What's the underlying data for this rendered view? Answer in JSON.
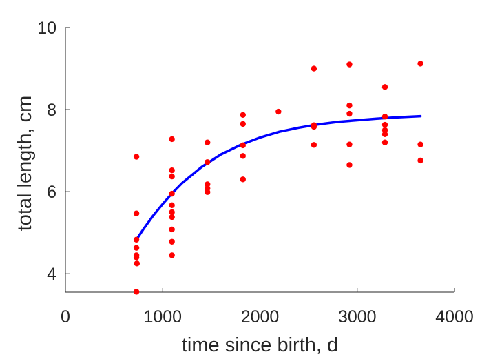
{
  "chart_data": {
    "type": "scatter",
    "xlabel": "time since birth, d",
    "ylabel": "total length, cm",
    "xlim": [
      0,
      4000
    ],
    "ylim": [
      3.55,
      10
    ],
    "x_ticks": [
      0,
      1000,
      2000,
      3000,
      4000
    ],
    "x_tick_labels": [
      "0",
      "1000",
      "2000",
      "3000",
      "4000"
    ],
    "y_ticks": [
      4,
      6,
      8,
      10
    ],
    "y_tick_labels": [
      "4",
      "6",
      "8",
      "10"
    ],
    "grid": false,
    "series": [
      {
        "kind": "points",
        "color": "#ff0000",
        "points": [
          [
            730,
            6.85
          ],
          [
            730,
            5.47
          ],
          [
            730,
            4.83
          ],
          [
            730,
            4.63
          ],
          [
            730,
            4.45
          ],
          [
            730,
            4.4
          ],
          [
            735,
            4.25
          ],
          [
            730,
            3.56
          ],
          [
            1095,
            7.28
          ],
          [
            1095,
            6.52
          ],
          [
            1095,
            6.37
          ],
          [
            1095,
            5.95
          ],
          [
            1095,
            5.67
          ],
          [
            1095,
            5.5
          ],
          [
            1095,
            5.38
          ],
          [
            1095,
            5.08
          ],
          [
            1095,
            4.78
          ],
          [
            1095,
            4.45
          ],
          [
            1460,
            7.2
          ],
          [
            1460,
            6.72
          ],
          [
            1460,
            6.18
          ],
          [
            1460,
            6.08
          ],
          [
            1460,
            5.99
          ],
          [
            1825,
            7.87
          ],
          [
            1825,
            7.65
          ],
          [
            1825,
            7.13
          ],
          [
            1825,
            6.87
          ],
          [
            1825,
            6.3
          ],
          [
            2190,
            7.95
          ],
          [
            2555,
            9.0
          ],
          [
            2555,
            7.62
          ],
          [
            2555,
            7.58
          ],
          [
            2555,
            7.14
          ],
          [
            2920,
            9.1
          ],
          [
            2920,
            8.1
          ],
          [
            2920,
            7.9
          ],
          [
            2920,
            7.15
          ],
          [
            2920,
            6.65
          ],
          [
            3285,
            8.55
          ],
          [
            3285,
            7.83
          ],
          [
            3285,
            7.63
          ],
          [
            3285,
            7.5
          ],
          [
            3285,
            7.4
          ],
          [
            3285,
            7.2
          ],
          [
            3650,
            9.12
          ],
          [
            3650,
            7.15
          ],
          [
            3650,
            6.76
          ]
        ]
      },
      {
        "kind": "curve",
        "color": "#0000ff",
        "x": [
          730,
          800,
          900,
          1000,
          1100,
          1200,
          1400,
          1600,
          1800,
          2000,
          2200,
          2400,
          2600,
          2800,
          3000,
          3200,
          3400,
          3650
        ],
        "y": [
          4.83,
          5.08,
          5.41,
          5.7,
          5.97,
          6.21,
          6.6,
          6.91,
          7.14,
          7.32,
          7.46,
          7.56,
          7.64,
          7.7,
          7.74,
          7.78,
          7.81,
          7.84
        ]
      }
    ]
  }
}
